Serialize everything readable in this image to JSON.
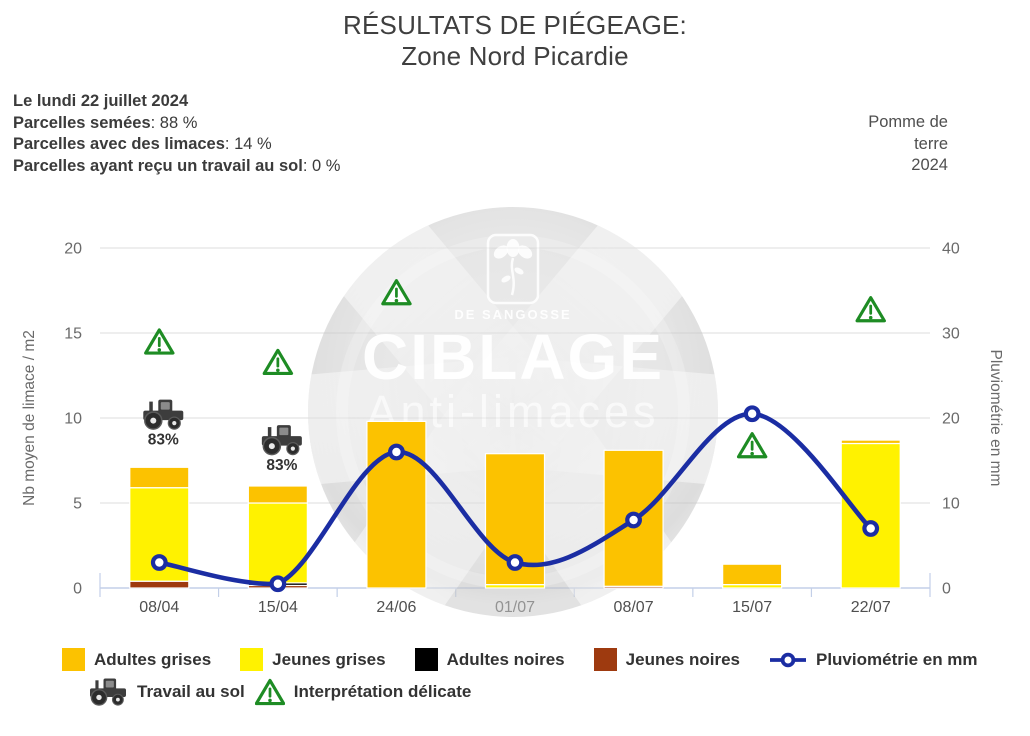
{
  "title": {
    "line1": "RÉSULTATS DE PIÉGEAGE:",
    "line2": "Zone Nord Picardie"
  },
  "info": {
    "lines": [
      {
        "label": "Le lundi 22 juillet 2024",
        "rest": ""
      },
      {
        "label": "Parcelles semées",
        "rest": ": 88 %"
      },
      {
        "label": "Parcelles avec des limaces",
        "rest": ": 14 %"
      },
      {
        "label": "Parcelles ayant reçu un travail au sol",
        "rest": ": 0 %"
      }
    ]
  },
  "crop_label": "Pomme de\nterre\n2024",
  "watermark": {
    "brand_top": "DE SANGOSSE",
    "brand_main": "CIBLAGE",
    "brand_sub": "Anti-limaces"
  },
  "chart_data": {
    "type": "bar",
    "subtype": "stacked-bars-with-line-overlay",
    "categories": [
      "08/04",
      "15/04",
      "24/06",
      "01/07",
      "08/07",
      "15/07",
      "22/07"
    ],
    "bar_series": [
      {
        "name": "Jeunes noires",
        "color": "#9E3A0F",
        "values": [
          0.4,
          0.15,
          0,
          0,
          0.1,
          0,
          0
        ]
      },
      {
        "name": "Adultes noires",
        "color": "#000000",
        "values": [
          0,
          0.15,
          0,
          0,
          0,
          0,
          0
        ]
      },
      {
        "name": "Jeunes grises",
        "color": "#FFF200",
        "values": [
          5.5,
          4.7,
          0,
          0.2,
          0,
          0.2,
          8.5
        ]
      },
      {
        "name": "Adultes grises",
        "color": "#FCC200",
        "values": [
          1.2,
          1.0,
          9.8,
          7.7,
          8.0,
          1.2,
          0.2
        ]
      }
    ],
    "line_series": {
      "name": "Pluviométrie en mm",
      "color": "#1B2DA3",
      "axis": "right",
      "values": [
        3,
        0.5,
        16,
        3,
        8,
        20.5,
        7
      ]
    },
    "left_axis": {
      "label": "Nb moyen de limace / m2",
      "min": 0,
      "max": 20,
      "ticks": [
        0,
        5,
        10,
        15,
        20
      ]
    },
    "right_axis": {
      "label": "Pluviométrie en mm",
      "min": 0,
      "max": 40,
      "ticks": [
        0,
        10,
        20,
        30,
        40
      ]
    },
    "grid": true,
    "annotations": {
      "tractors": [
        {
          "category_index": 0,
          "y_left": 10.2,
          "label": "83%"
        },
        {
          "category_index": 1,
          "y_left": 8.7,
          "label": "83%"
        }
      ],
      "warnings": [
        {
          "category_index": 0,
          "y_left": 14.5
        },
        {
          "category_index": 1,
          "y_left": 13.3
        },
        {
          "category_index": 2,
          "y_left": 17.4
        },
        {
          "category_index": 5,
          "y_left": 8.4
        },
        {
          "category_index": 6,
          "y_left": 16.4
        }
      ]
    }
  },
  "legend": {
    "row1": [
      {
        "type": "swatch",
        "color": "#FCC200",
        "label": "Adultes grises"
      },
      {
        "type": "swatch",
        "color": "#FFF200",
        "label": "Jeunes grises"
      },
      {
        "type": "swatch",
        "color": "#000000",
        "label": "Adultes noires"
      },
      {
        "type": "swatch",
        "color": "#9E3A0F",
        "label": "Jeunes noires"
      },
      {
        "type": "line",
        "color": "#1B2DA3",
        "label": "Pluviométrie en mm"
      }
    ],
    "row2": [
      {
        "type": "tractor",
        "label": "Travail au sol"
      },
      {
        "type": "warning",
        "label": "Interprétation délicate"
      }
    ]
  }
}
